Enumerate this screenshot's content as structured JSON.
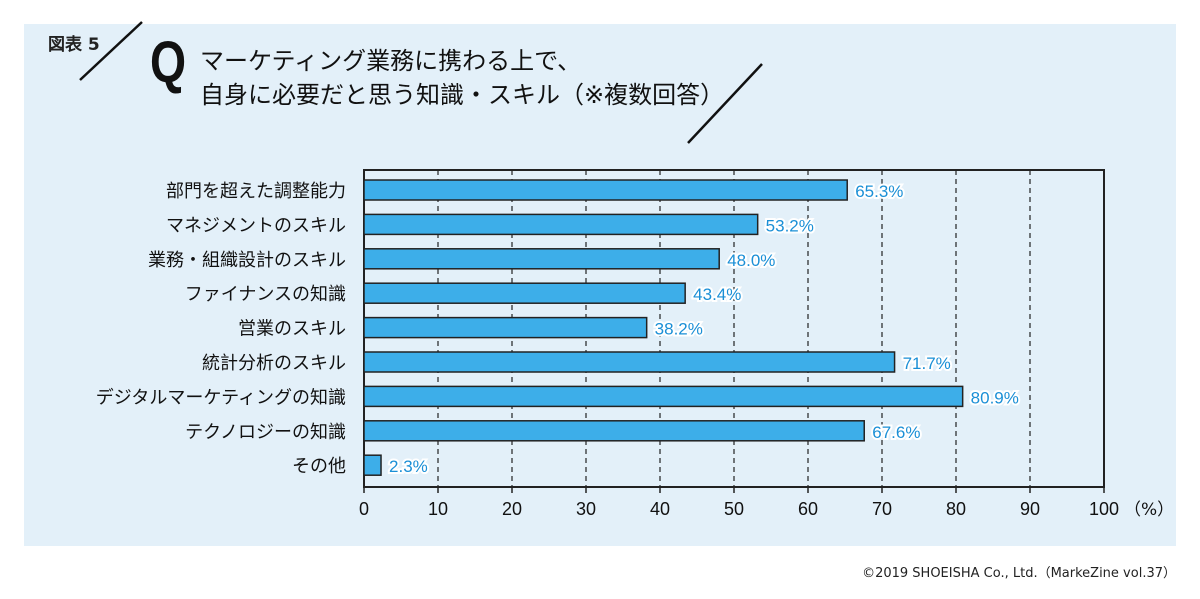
{
  "figure_label": "図表 5",
  "q_mark": "Q",
  "title_lines": [
    "マーケティング業務に携わる上で、",
    "自身に必要だと思う知識・スキル（※複数回答）"
  ],
  "credit": "©2019 SHOEISHA Co., Ltd.（MarkeZine vol.37）",
  "colors": {
    "bar": "#3daee9",
    "label": "#1a8fd6",
    "panel": "#e3f0f9"
  },
  "chart_data": {
    "type": "bar",
    "orientation": "horizontal",
    "title": "マーケティング業務に携わる上で、自身に必要だと思う知識・スキル（※複数回答）",
    "categories": [
      "部門を超えた調整能力",
      "マネジメントのスキル",
      "業務・組織設計のスキル",
      "ファイナンスの知識",
      "営業のスキル",
      "統計分析のスキル",
      "デジタルマーケティングの知識",
      "テクノロジーの知識",
      "その他"
    ],
    "values": [
      65.3,
      53.2,
      48.0,
      43.4,
      38.2,
      71.7,
      80.9,
      67.6,
      2.3
    ],
    "data_labels": [
      "65.3%",
      "53.2%",
      "48.0%",
      "43.4%",
      "38.2%",
      "71.7%",
      "80.9%",
      "67.6%",
      "2.3%"
    ],
    "xlim": [
      0,
      100
    ],
    "xticks": [
      "0",
      "10",
      "20",
      "30",
      "40",
      "50",
      "60",
      "70",
      "80",
      "90",
      "100"
    ],
    "xunit": "（%）",
    "grid": "vertical dashed"
  }
}
